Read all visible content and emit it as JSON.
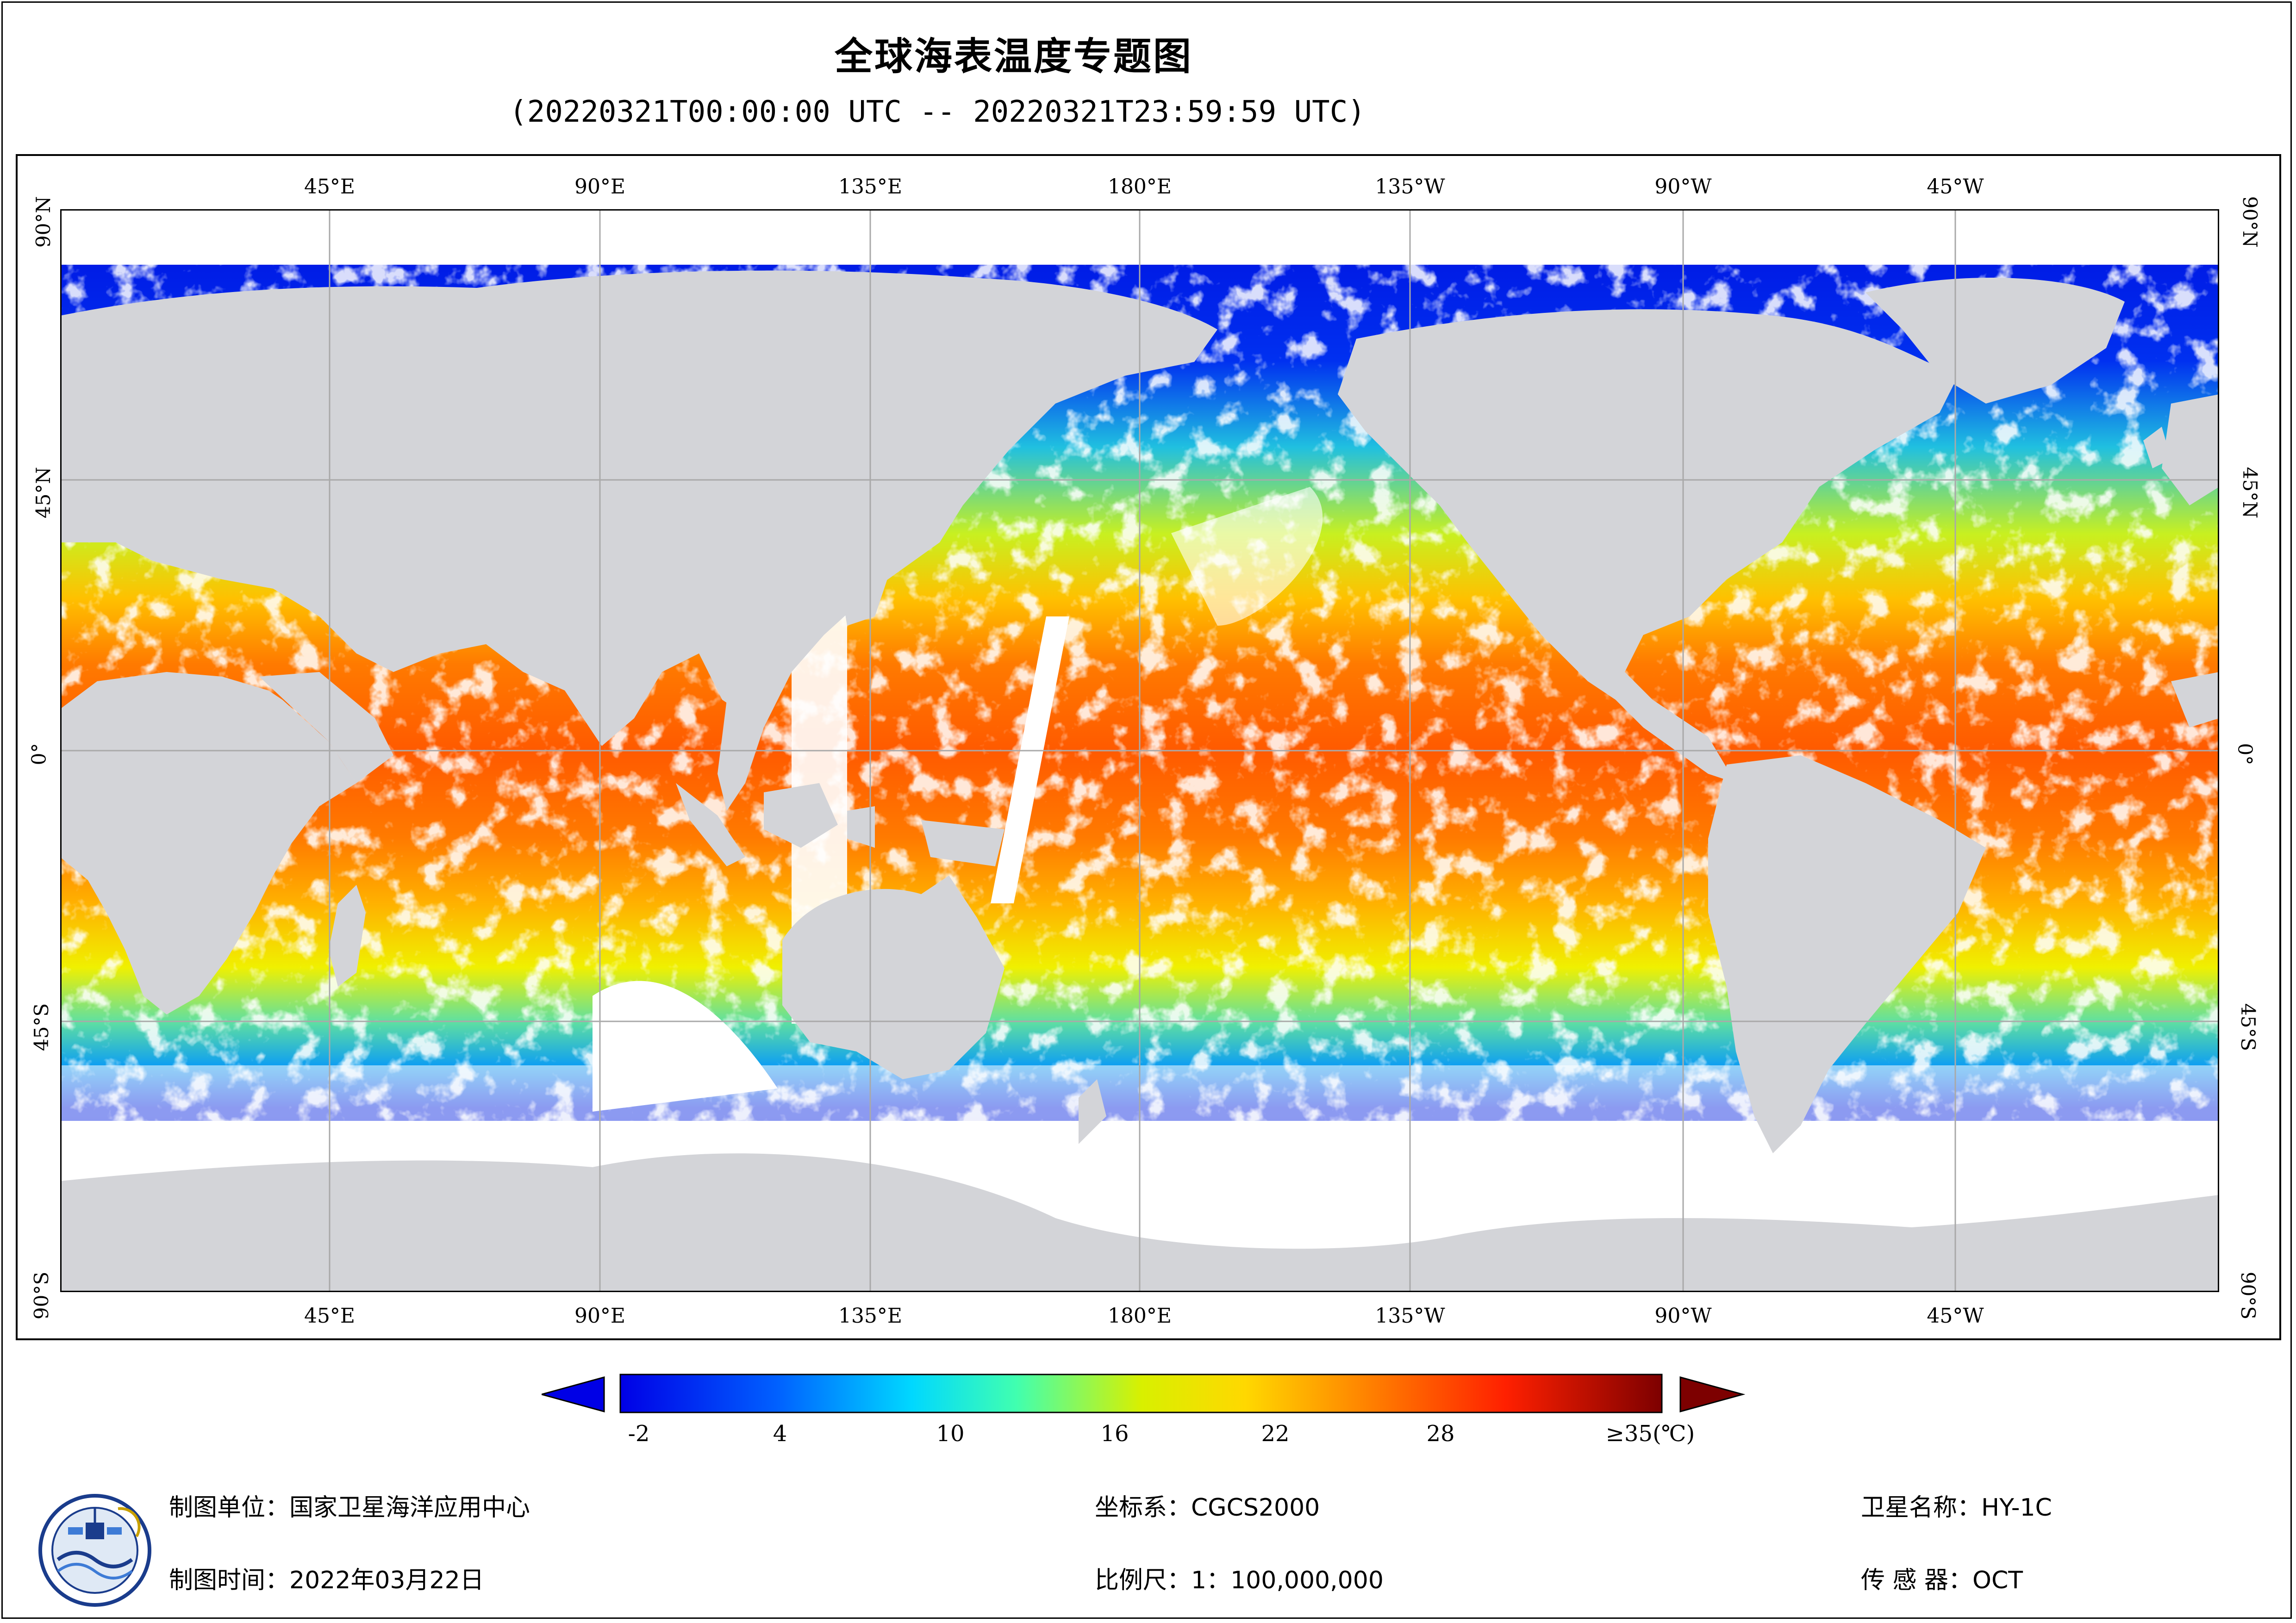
{
  "title": "全球海表温度专题图",
  "subtitle": "(20220321T00:00:00 UTC -- 20220321T23:59:59 UTC)",
  "map": {
    "lon_labels": [
      "45°E",
      "90°E",
      "135°E",
      "180°E",
      "135°W",
      "90°W",
      "45°W"
    ],
    "lat_labels_left": [
      "90°N",
      "45°N",
      "0°",
      "45°S",
      "90°S"
    ],
    "lat_labels_right": [
      "90°N",
      "45°N",
      "0°",
      "45°S",
      "90°S"
    ],
    "colors": {
      "land": "#d3d4d8",
      "cloud": "#ffffff",
      "grid": "#a9a9a9"
    }
  },
  "colorbar": {
    "tick_labels": [
      "-2",
      "4",
      "10",
      "16",
      "22",
      "28",
      "≥35(℃)"
    ],
    "min_color": "#0000e6",
    "max_color": "#7d0000"
  },
  "footer": {
    "unit_label": "制图单位：国家卫星海洋应用中心",
    "time_label": "制图时间：2022年03月22日",
    "crs_label": "坐标系：CGCS2000",
    "scale_label": "比例尺：1：100,000,000",
    "satellite_label": "卫星名称：HY-1C",
    "sensor_label": "传 感 器：OCT"
  }
}
